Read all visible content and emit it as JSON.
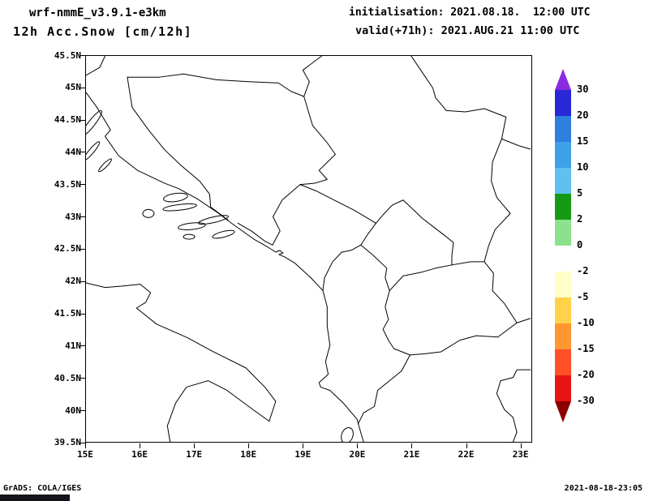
{
  "header": {
    "line1_left": "wrf-nmmE_v3.9.1-e3km",
    "line2_left": "12h Acc.Snow [cm/12h]",
    "line1_right": "initialisation: 2021.08.18.  12:00 UTC",
    "line2_right": "valid(+71h): 2021.AUG.21 11:00 UTC"
  },
  "footer": {
    "left": "GrADS: COLA/IGES",
    "right": "2021-08-18-23:05"
  },
  "chart_data": {
    "type": "map",
    "title": "12h Acc.Snow [cm/12h]",
    "model": "wrf-nmmE_v3.9.1-e3km",
    "initialisation": "2021.08.18. 12:00 UTC",
    "forecast_hour": "+71h",
    "valid": "2021.AUG.21 11:00 UTC",
    "region": "Adriatic / Balkans",
    "lon_range": [
      15,
      23.2
    ],
    "lat_range": [
      39.5,
      45.5
    ],
    "lon_ticks": [
      "15E",
      "16E",
      "17E",
      "18E",
      "19E",
      "20E",
      "21E",
      "22E",
      "23E"
    ],
    "lat_ticks": [
      "45.5N",
      "45N",
      "44.5N",
      "44N",
      "43.5N",
      "43N",
      "42.5N",
      "42N",
      "41.5N",
      "41N",
      "40.5N",
      "40N",
      "39.5N"
    ],
    "field_note": "no shaded snow accumulation visible anywhere in the domain (map unshaded, outlines only)",
    "colorbar": {
      "units": "cm/12h",
      "levels": [
        30,
        20,
        15,
        10,
        5,
        2,
        0,
        -2,
        -5,
        -10,
        -15,
        -20,
        -30
      ],
      "arrow_top_color": "#8a2be2",
      "segment_colors": [
        "#2828d7",
        "#2f7fdf",
        "#3fa0e8",
        "#5ec1ef",
        "#169a16",
        "#8ce28c",
        "#ffffff",
        "#ffffc8",
        "#ffd24a",
        "#ff9632",
        "#ff5028",
        "#e61414"
      ],
      "arrow_bottom_color": "#8b0000"
    }
  }
}
